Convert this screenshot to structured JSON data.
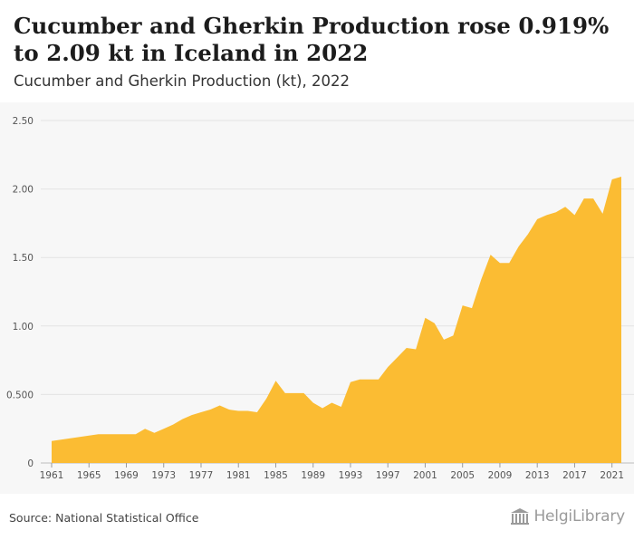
{
  "header": {
    "title": "Cucumber and Gherkin Production rose 0.919% to 2.09 kt in Iceland in 2022",
    "subtitle": "Cucumber and Gherkin Production (kt), 2022"
  },
  "footer": {
    "source": "Source: National Statistical Office",
    "brand": "HelgiLibrary",
    "brand_icon": "library-building-icon"
  },
  "colors": {
    "area_fill": "#fbbc33",
    "grid": "#e3e3e3",
    "background": "#f7f7f7"
  },
  "chart_data": {
    "type": "area",
    "title": "Cucumber and Gherkin Production rose 0.919% to 2.09 kt in Iceland in 2022",
    "subtitle": "Cucumber and Gherkin Production (kt), 2022",
    "xlabel": "",
    "ylabel": "",
    "ylim": [
      0,
      2.5
    ],
    "xlim": [
      1961,
      2022
    ],
    "grid": true,
    "yticks": [
      0,
      0.5,
      1.0,
      1.5,
      2.0,
      2.5
    ],
    "ytick_labels": [
      "0",
      "0.500",
      "1.00",
      "1.50",
      "2.00",
      "2.50"
    ],
    "xticks": [
      1961,
      1965,
      1969,
      1973,
      1977,
      1981,
      1985,
      1989,
      1993,
      1997,
      2001,
      2005,
      2009,
      2013,
      2017,
      2021
    ],
    "x": [
      1961,
      1962,
      1963,
      1964,
      1965,
      1966,
      1967,
      1968,
      1969,
      1970,
      1971,
      1972,
      1973,
      1974,
      1975,
      1976,
      1977,
      1978,
      1979,
      1980,
      1981,
      1982,
      1983,
      1984,
      1985,
      1986,
      1987,
      1988,
      1989,
      1990,
      1991,
      1992,
      1993,
      1994,
      1995,
      1996,
      1997,
      1998,
      1999,
      2000,
      2001,
      2002,
      2003,
      2004,
      2005,
      2006,
      2007,
      2008,
      2009,
      2010,
      2011,
      2012,
      2013,
      2014,
      2015,
      2016,
      2017,
      2018,
      2019,
      2020,
      2021,
      2022
    ],
    "series": [
      {
        "values": [
          0.16,
          0.17,
          0.18,
          0.19,
          0.2,
          0.21,
          0.21,
          0.21,
          0.21,
          0.21,
          0.25,
          0.22,
          0.25,
          0.28,
          0.32,
          0.35,
          0.37,
          0.39,
          0.42,
          0.39,
          0.38,
          0.38,
          0.37,
          0.47,
          0.6,
          0.51,
          0.51,
          0.51,
          0.44,
          0.4,
          0.44,
          0.41,
          0.59,
          0.61,
          0.61,
          0.61,
          0.7,
          0.77,
          0.84,
          0.83,
          1.06,
          1.02,
          0.9,
          0.93,
          1.15,
          1.13,
          1.34,
          1.52,
          1.46,
          1.46,
          1.58,
          1.67,
          1.78,
          1.81,
          1.83,
          1.87,
          1.81,
          1.93,
          1.93,
          1.82,
          2.07,
          2.09
        ]
      }
    ]
  }
}
